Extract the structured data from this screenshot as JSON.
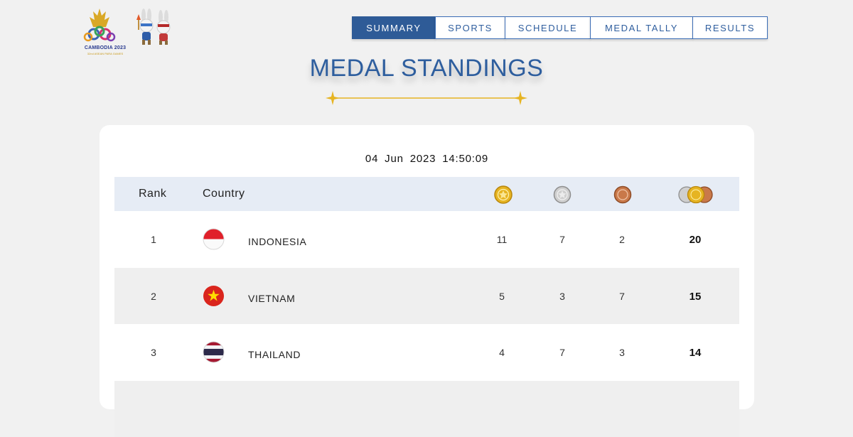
{
  "logo": {
    "text": "CAMBODIA 2023",
    "subtext": "32nd ASEAN PARA GAMES"
  },
  "nav": [
    {
      "label": "SUMMARY",
      "active": true
    },
    {
      "label": "SPORTS",
      "active": false
    },
    {
      "label": "SCHEDULE",
      "active": false
    },
    {
      "label": "MEDAL TALLY",
      "active": false
    },
    {
      "label": "RESULTS",
      "active": false
    }
  ],
  "title": "MEDAL STANDINGS",
  "timestamp": "04 Jun 2023  14:50:09",
  "table": {
    "headers": {
      "rank": "Rank",
      "country": "Country"
    },
    "medal_icons": [
      "gold-medal-icon",
      "silver-medal-icon",
      "bronze-medal-icon",
      "total-medals-icon"
    ],
    "rows": [
      {
        "rank": "1",
        "country": "INDONESIA",
        "flag": "indonesia-flag-icon",
        "gold": "11",
        "silver": "7",
        "bronze": "2",
        "total": "20"
      },
      {
        "rank": "2",
        "country": "VIETNAM",
        "flag": "vietnam-flag-icon",
        "gold": "5",
        "silver": "3",
        "bronze": "7",
        "total": "15"
      },
      {
        "rank": "3",
        "country": "THAILAND",
        "flag": "thailand-flag-icon",
        "gold": "4",
        "silver": "7",
        "bronze": "3",
        "total": "14"
      }
    ]
  },
  "colors": {
    "accent": "#2e5b97",
    "title": "#2e5e9e",
    "gold": "#e6b422",
    "header_bg": "#e6ecf5"
  }
}
